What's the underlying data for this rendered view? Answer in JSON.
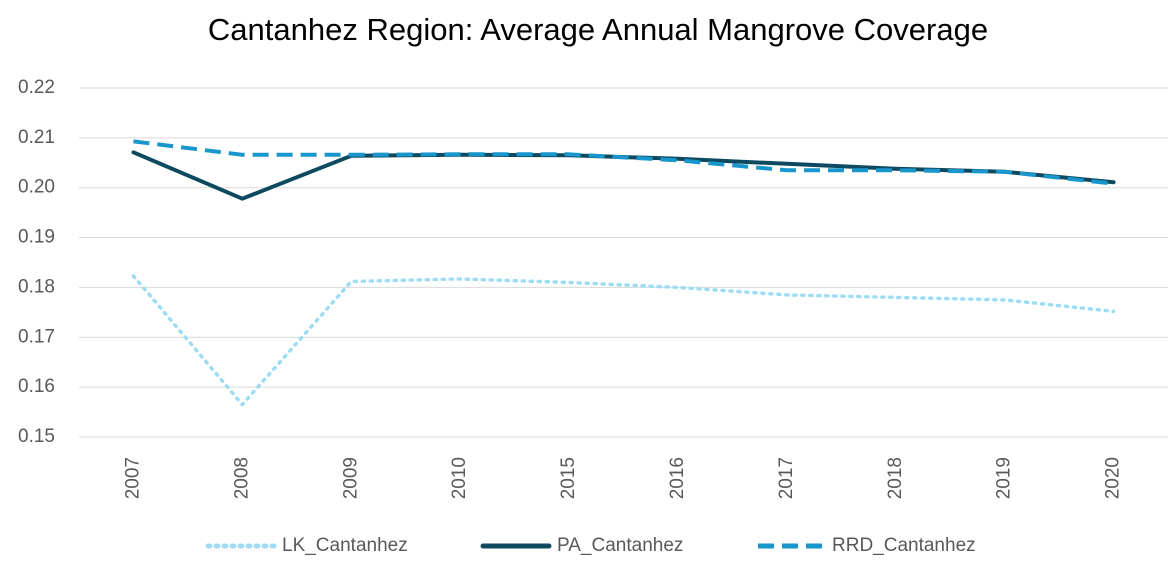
{
  "chart_data": {
    "type": "line",
    "title": "Cantanhez Region: Average Annual  Mangrove Coverage",
    "categories": [
      "2007",
      "2008",
      "2009",
      "2010",
      "2015",
      "2016",
      "2017",
      "2018",
      "2019",
      "2020"
    ],
    "series": [
      {
        "name": "LK_Cantanhez",
        "color": "#9fdcf4",
        "style": "dotted",
        "values": [
          0.1823,
          0.1565,
          0.1812,
          0.1817,
          0.181,
          0.18,
          0.1785,
          0.178,
          0.1775,
          0.1752
        ]
      },
      {
        "name": "PA_Cantanhez",
        "color": "#0e4a5f",
        "style": "solid",
        "values": [
          0.2071,
          0.1978,
          0.2064,
          0.2066,
          0.2065,
          0.2058,
          0.2048,
          0.2038,
          0.2032,
          0.2011
        ]
      },
      {
        "name": "RRD_Cantanhez",
        "color": "#1996cc",
        "style": "dashed",
        "values": [
          0.2093,
          0.2066,
          0.2066,
          0.2067,
          0.2067,
          0.2055,
          0.2035,
          0.2035,
          0.2032,
          0.2008
        ]
      }
    ],
    "ylim": [
      0.15,
      0.22
    ],
    "yticks": [
      0.15,
      0.16,
      0.17,
      0.18,
      0.19,
      {
        "value": 0.2,
        "label": "0.20"
      },
      0.21,
      0.22
    ],
    "grid": true,
    "legend": "bottom"
  }
}
